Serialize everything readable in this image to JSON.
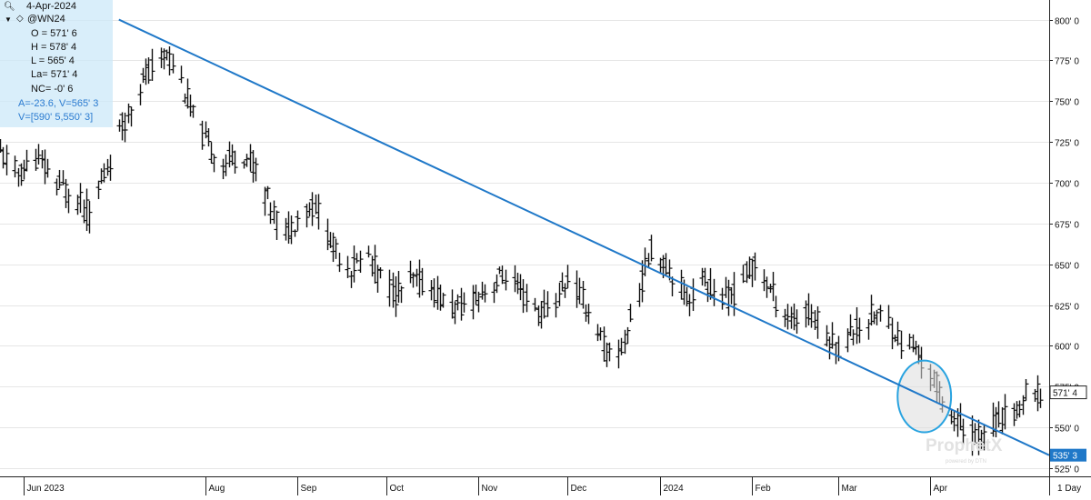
{
  "header": {
    "date": "4-Apr-2024",
    "symbol": "@WN24",
    "search_icon": "magnifier-icon",
    "collapse_icon": "triangle-down-icon",
    "symbol_icon": "diamond-icon"
  },
  "ohlc_panel": {
    "open": "O = 571' 6",
    "high": "H = 578' 4",
    "low": "L = 565' 4",
    "last": "La= 571' 4",
    "net_change": "NC= -0' 6",
    "angle_value": "A=-23.6, V=565' 3",
    "value_range": "V=[590' 5,550' 3]"
  },
  "watermark": {
    "brand": "ProphetX",
    "sub": "powered by DTN"
  },
  "interval_label": "1 Day",
  "colors": {
    "bars": "#111111",
    "trendline": "#1f78c8",
    "ellipse_stroke": "#29a3e0",
    "ellipse_fill": "#dcdcdc",
    "last_price_bg": "#ffffff",
    "trend_tag_bg": "#1f78c8"
  },
  "chart_data": {
    "type": "ohlc",
    "title": "",
    "xlabel": "",
    "ylabel": "",
    "y_tick_labels": [
      "800' 0",
      "775' 0",
      "750' 0",
      "725' 0",
      "700' 0",
      "675' 0",
      "650' 0",
      "625' 0",
      "600' 0",
      "575' 0",
      "550' 0",
      "525' 0"
    ],
    "y_ticks": [
      800,
      775,
      750,
      725,
      700,
      675,
      650,
      625,
      600,
      575,
      550,
      525
    ],
    "ylim": [
      520,
      812
    ],
    "x_tick_labels": [
      "Jun 2023",
      "Aug",
      "Sep",
      "Oct",
      "Nov",
      "Dec",
      "2024",
      "Feb",
      "Mar",
      "Apr"
    ],
    "x_tick_dates": [
      "2023-06-01",
      "2023-08-01",
      "2023-09-01",
      "2023-10-01",
      "2023-11-01",
      "2023-12-01",
      "2024-01-01",
      "2024-02-01",
      "2024-03-01",
      "2024-04-01"
    ],
    "xlim": [
      "2023-05-24",
      "2024-05-11"
    ],
    "grid": true,
    "last_price": {
      "value": 571.5,
      "label": "571' 4"
    },
    "trendline": {
      "start": {
        "date": "2023-07-03",
        "value": 800
      },
      "end": {
        "date": "2024-05-11",
        "value": 533
      },
      "end_label": "535' 3"
    },
    "highlight_ellipse": {
      "center_date": "2024-03-30",
      "center_value": 569,
      "date_radius_days": 9,
      "value_radius": 22
    },
    "waypoints": [
      [
        "2023-05-24",
        718
      ],
      [
        "2023-05-30",
        705
      ],
      [
        "2023-06-05",
        715
      ],
      [
        "2023-06-12",
        700
      ],
      [
        "2023-06-19",
        690
      ],
      [
        "2023-06-23",
        680
      ],
      [
        "2023-06-29",
        710
      ],
      [
        "2023-07-04",
        735
      ],
      [
        "2023-07-10",
        760
      ],
      [
        "2023-07-14",
        770
      ],
      [
        "2023-07-19",
        780
      ],
      [
        "2023-07-24",
        762
      ],
      [
        "2023-07-28",
        740
      ],
      [
        "2023-08-02",
        722
      ],
      [
        "2023-08-07",
        712
      ],
      [
        "2023-08-14",
        718
      ],
      [
        "2023-08-18",
        708
      ],
      [
        "2023-08-23",
        685
      ],
      [
        "2023-08-28",
        668
      ],
      [
        "2023-09-01",
        680
      ],
      [
        "2023-09-07",
        686
      ],
      [
        "2023-09-13",
        660
      ],
      [
        "2023-09-19",
        648
      ],
      [
        "2023-09-25",
        655
      ],
      [
        "2023-09-29",
        642
      ],
      [
        "2023-10-04",
        632
      ],
      [
        "2023-10-10",
        640
      ],
      [
        "2023-10-16",
        636
      ],
      [
        "2023-10-20",
        627
      ],
      [
        "2023-10-25",
        622
      ],
      [
        "2023-10-31",
        630
      ],
      [
        "2023-11-06",
        638
      ],
      [
        "2023-11-10",
        644
      ],
      [
        "2023-11-16",
        630
      ],
      [
        "2023-11-22",
        620
      ],
      [
        "2023-11-28",
        630
      ],
      [
        "2023-12-01",
        642
      ],
      [
        "2023-12-06",
        628
      ],
      [
        "2023-12-11",
        610
      ],
      [
        "2023-12-15",
        592
      ],
      [
        "2023-12-19",
        598
      ],
      [
        "2023-12-26",
        640
      ],
      [
        "2023-12-29",
        660
      ],
      [
        "2024-01-04",
        648
      ],
      [
        "2024-01-10",
        630
      ],
      [
        "2024-01-16",
        640
      ],
      [
        "2024-01-22",
        628
      ],
      [
        "2024-01-26",
        632
      ],
      [
        "2024-02-01",
        650
      ],
      [
        "2024-02-05",
        642
      ],
      [
        "2024-02-09",
        628
      ],
      [
        "2024-02-15",
        615
      ],
      [
        "2024-02-21",
        620
      ],
      [
        "2024-02-27",
        605
      ],
      [
        "2024-03-01",
        598
      ],
      [
        "2024-03-05",
        608
      ],
      [
        "2024-03-08",
        612
      ],
      [
        "2024-03-13",
        620
      ],
      [
        "2024-03-18",
        615
      ],
      [
        "2024-03-22",
        602
      ],
      [
        "2024-03-26",
        600
      ],
      [
        "2024-03-29",
        590
      ],
      [
        "2024-04-02",
        580
      ],
      [
        "2024-04-05",
        568
      ],
      [
        "2024-04-09",
        556
      ],
      [
        "2024-04-12",
        548
      ],
      [
        "2024-04-17",
        545
      ],
      [
        "2024-04-22",
        552
      ],
      [
        "2024-04-26",
        556
      ],
      [
        "2024-04-30",
        560
      ],
      [
        "2024-05-03",
        570
      ],
      [
        "2024-05-08",
        570
      ]
    ]
  }
}
